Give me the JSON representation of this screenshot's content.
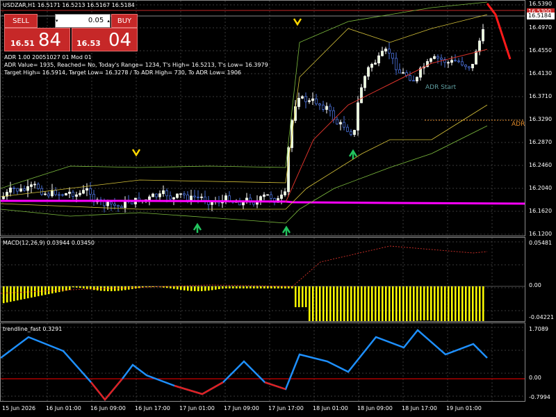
{
  "chart_header": {
    "symbol_line": "USDZAR,H1  16.5171 16.5213 16.5167 16.5184"
  },
  "trade_panel": {
    "sell_label": "SELL",
    "buy_label": "BUY",
    "lot_value": "0.05",
    "sell_price_small": "16.51",
    "sell_price_big": "84",
    "buy_price_small": "16.53",
    "buy_price_big": "04",
    "panel_color": "#c62828"
  },
  "adr_info": {
    "line1": "ADR 1.00 20051027 01 Mod 01",
    "line2": "ADR Value= 1935, Reached= No, Today's Range= 1234, T's High= 16.5213, T's Low= 16.3979",
    "line3": "Target High= 16.5914, Target Low= 16.3278 / To ADR High= 730, To ADR Low= 1906"
  },
  "labels": {
    "adr_start": "ADR Start",
    "adr_right": "ADR"
  },
  "price_axis": {
    "ticks": [
      "16.5390",
      "16.4970",
      "16.4550",
      "16.4130",
      "16.3710",
      "16.3290",
      "16.2870",
      "16.2460",
      "16.2040",
      "16.1620",
      "16.1200"
    ],
    "current_price": "16.5184",
    "top_badge": "16.5300"
  },
  "macd": {
    "label": "MACD(12,26,9) 0.03944 0.03450",
    "ticks": [
      "0.05481",
      "0.00",
      "-0.04221"
    ]
  },
  "trendline": {
    "label": "trendline_fast 0.3291",
    "ticks": [
      "1.7089",
      "0.00",
      "-0.7994"
    ]
  },
  "time_axis": [
    "15 Jun 2026",
    "16 Jun 01:00",
    "16 Jun 09:00",
    "16 Jun 17:00",
    "17 Jun 01:00",
    "17 Jun 09:00",
    "17 Jun 17:00",
    "18 Jun 01:00",
    "18 Jun 09:00",
    "18 Jun 17:00",
    "19 Jun 01:00"
  ],
  "colors": {
    "bull_candle": "#ffffff",
    "bear_candle": "#4a6fd6",
    "ma_line": "#ff00ff",
    "macd_hist": "#ffff00",
    "signal": "#d9332b",
    "trend_up": "#1e90ff",
    "trend_down": "#e02020",
    "grid": "#3a3a3a"
  }
}
